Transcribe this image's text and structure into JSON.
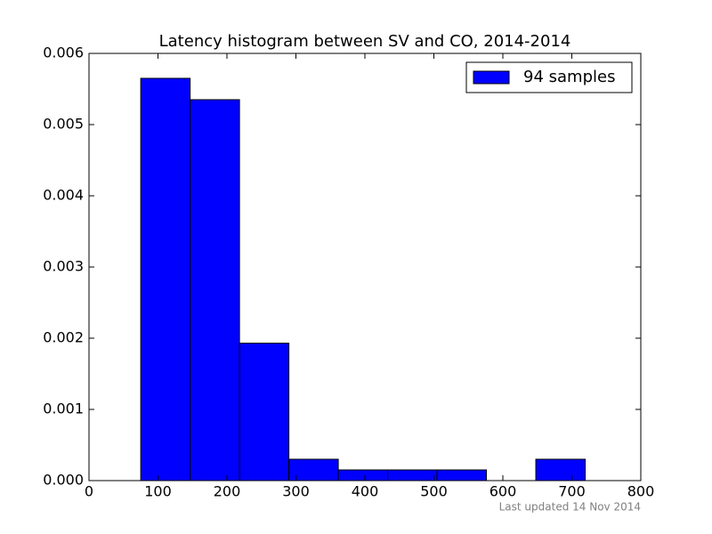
{
  "chart_data": {
    "type": "histogram",
    "title": "Latency histogram between SV and CO, 2014-2014",
    "bins": [
      75,
      146.6,
      218.2,
      289.8,
      361.4,
      433,
      504.6,
      576.2,
      647.8,
      719.4
    ],
    "series": [
      {
        "name": "94 samples",
        "color": "#0000ff",
        "values": [
          0.00565,
          0.00535,
          0.00193,
          0.0003,
          0.00015,
          0.00015,
          0.00015,
          0,
          0.0003
        ]
      }
    ],
    "xlim": [
      0,
      800
    ],
    "xticks": [
      0,
      100,
      200,
      300,
      400,
      500,
      600,
      700,
      800
    ],
    "ylim": [
      0,
      0.006
    ],
    "yticks": [
      {
        "value": 0,
        "label": "0.000"
      },
      {
        "value": 0.001,
        "label": "0.001"
      },
      {
        "value": 0.002,
        "label": "0.002"
      },
      {
        "value": 0.003,
        "label": "0.003"
      },
      {
        "value": 0.004,
        "label": "0.004"
      },
      {
        "value": 0.005,
        "label": "0.005"
      },
      {
        "value": 0.006,
        "label": "0.006"
      }
    ],
    "legend": "upper right",
    "footnote": "Last updated 14 Nov 2014"
  }
}
